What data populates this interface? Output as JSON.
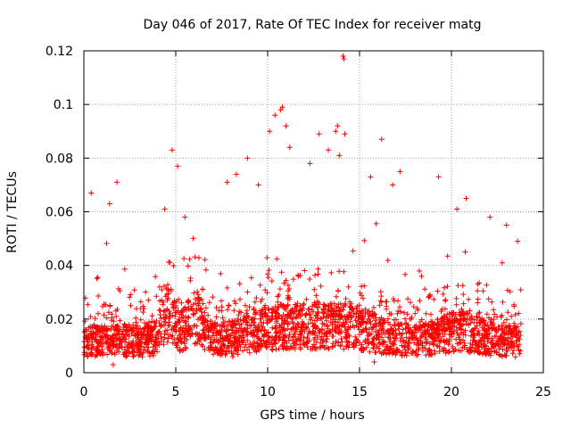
{
  "chart_data": {
    "type": "scatter",
    "title": "Day 046 of 2017, Rate Of TEC Index for receiver matg",
    "xlabel": "GPS time / hours",
    "ylabel": "ROTI / TECUs",
    "xlim": [
      0,
      25
    ],
    "ylim": [
      0,
      0.12
    ],
    "xticks": [
      0,
      5,
      10,
      15,
      20,
      25
    ],
    "yticks": [
      0,
      0.02,
      0.04,
      0.06,
      0.08,
      0.1,
      0.12
    ],
    "xtick_labels": [
      "0",
      "5",
      "10",
      "15",
      "20",
      "25"
    ],
    "ytick_labels": [
      "0",
      "0.02",
      "0.04",
      "0.06",
      "0.08",
      "0.1",
      "0.12"
    ],
    "grid": true,
    "marker": "+",
    "color": "#ff0000",
    "series": [
      {
        "name": "ROTI",
        "notable_points": [
          [
            0.4,
            0.067
          ],
          [
            1.4,
            0.063
          ],
          [
            1.8,
            0.071
          ],
          [
            4.4,
            0.061
          ],
          [
            4.8,
            0.083
          ],
          [
            5.1,
            0.077
          ],
          [
            5.5,
            0.058
          ],
          [
            7.8,
            0.071
          ],
          [
            8.3,
            0.074
          ],
          [
            8.9,
            0.08
          ],
          [
            9.5,
            0.07
          ],
          [
            10.1,
            0.09
          ],
          [
            10.4,
            0.096
          ],
          [
            10.7,
            0.098
          ],
          [
            10.8,
            0.099
          ],
          [
            11.0,
            0.092
          ],
          [
            11.2,
            0.084
          ],
          [
            12.3,
            0.078
          ],
          [
            12.8,
            0.089
          ],
          [
            13.3,
            0.083
          ],
          [
            13.7,
            0.09
          ],
          [
            13.8,
            0.092
          ],
          [
            13.9,
            0.081
          ],
          [
            14.2,
            0.089
          ],
          [
            14.1,
            0.118
          ],
          [
            14.15,
            0.117
          ],
          [
            15.6,
            0.073
          ],
          [
            16.2,
            0.087
          ],
          [
            16.8,
            0.07
          ],
          [
            17.2,
            0.075
          ],
          [
            19.3,
            0.073
          ],
          [
            20.3,
            0.061
          ],
          [
            20.8,
            0.065
          ],
          [
            22.1,
            0.058
          ],
          [
            23.0,
            0.055
          ],
          [
            23.6,
            0.049
          ],
          [
            1.6,
            0.003
          ],
          [
            8.1,
            0.006
          ],
          [
            15.8,
            0.004
          ]
        ]
      }
    ]
  }
}
